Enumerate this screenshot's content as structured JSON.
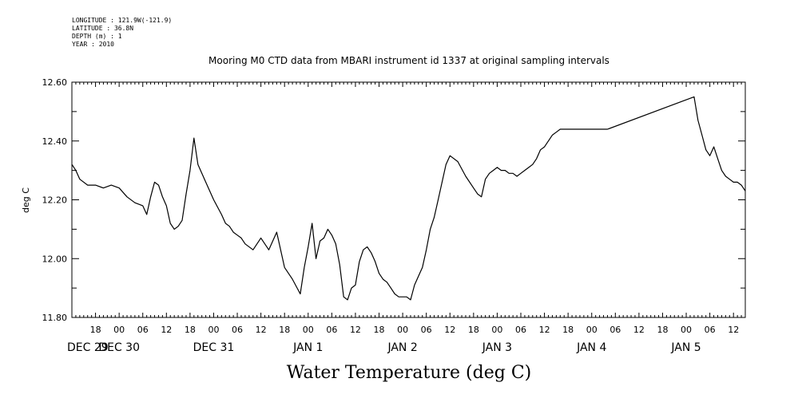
{
  "header": {
    "longitude": "LONGITUDE : 121.9W(-121.9)",
    "latitude": "LATITUDE : 36.8N",
    "depth": "DEPTH (m) : 1",
    "year": "YEAR : 2010"
  },
  "chart_data": {
    "type": "line",
    "title": "Mooring M0 CTD data from MBARI instrument id 1337 at original sampling intervals",
    "xlabel": "Water Temperature (deg C)",
    "ylabel": "deg C",
    "ylim": [
      11.8,
      12.6
    ],
    "yticks": [
      "12.60",
      "12.40",
      "12.20",
      "12.00",
      "11.80"
    ],
    "x_range_hours": [
      12,
      183
    ],
    "x_hour_ticks": [
      "18",
      "00",
      "06",
      "12",
      "18",
      "00",
      "06",
      "12",
      "18",
      "00",
      "06",
      "12",
      "18",
      "00",
      "06",
      "12",
      "18",
      "00",
      "06",
      "12",
      "18",
      "00",
      "06",
      "12",
      "18",
      "00",
      "06",
      "12"
    ],
    "date_labels": [
      "DEC 29",
      "DEC 30",
      "DEC 31",
      "JAN  1",
      "JAN  2",
      "JAN  3",
      "JAN  4",
      "JAN  5"
    ],
    "grid": false,
    "series": [
      {
        "x": [
          12,
          13,
          14,
          16,
          18,
          20,
          22,
          24,
          26,
          28,
          30,
          31,
          32,
          33,
          34,
          35,
          36,
          37,
          38,
          39,
          40,
          41,
          42,
          43,
          44,
          46,
          48,
          50,
          51,
          52,
          53,
          54,
          55,
          56,
          58,
          60,
          62,
          64,
          66,
          68,
          70,
          71,
          72,
          73,
          74,
          75,
          76,
          77,
          78,
          79,
          80,
          81,
          82,
          83,
          84,
          85,
          86,
          87,
          88,
          89,
          90,
          91,
          92,
          93,
          94,
          95,
          96,
          97,
          98,
          99,
          100,
          101,
          102,
          103,
          104,
          105,
          106,
          107,
          108,
          110,
          112,
          114,
          115,
          116,
          117,
          118,
          119,
          120,
          121,
          122,
          123,
          124,
          125,
          126,
          127,
          128,
          129,
          130,
          131,
          132,
          134,
          135,
          136,
          137,
          138,
          139,
          140,
          141,
          142,
          143,
          144,
          145,
          146,
          147,
          148,
          170,
          171,
          172,
          173,
          174,
          175,
          176,
          177,
          178,
          179,
          180,
          181,
          182,
          183
        ],
        "y": [
          12.32,
          12.3,
          12.27,
          12.25,
          12.25,
          12.24,
          12.25,
          12.24,
          12.21,
          12.19,
          12.18,
          12.15,
          12.21,
          12.26,
          12.25,
          12.21,
          12.18,
          12.12,
          12.1,
          12.11,
          12.13,
          12.22,
          12.3,
          12.41,
          12.32,
          12.26,
          12.2,
          12.15,
          12.12,
          12.11,
          12.09,
          12.08,
          12.07,
          12.05,
          12.03,
          12.07,
          12.03,
          12.09,
          11.97,
          11.93,
          11.88,
          11.97,
          12.04,
          12.12,
          12.0,
          12.06,
          12.07,
          12.1,
          12.08,
          12.05,
          11.98,
          11.87,
          11.86,
          11.9,
          11.91,
          11.99,
          12.03,
          12.04,
          12.02,
          11.99,
          11.95,
          11.93,
          11.92,
          11.9,
          11.88,
          11.87,
          11.87,
          11.87,
          11.86,
          11.91,
          11.94,
          11.97,
          12.03,
          12.1,
          12.14,
          12.2,
          12.26,
          12.32,
          12.35,
          12.33,
          12.28,
          12.24,
          12.22,
          12.21,
          12.27,
          12.29,
          12.3,
          12.31,
          12.3,
          12.3,
          12.29,
          12.29,
          12.28,
          12.29,
          12.3,
          12.31,
          12.32,
          12.34,
          12.37,
          12.38,
          12.42,
          12.43,
          12.44,
          12.44,
          12.44,
          12.44,
          12.44,
          12.44,
          12.44,
          12.44,
          12.44,
          12.44,
          12.44,
          12.44,
          12.44,
          12.55,
          12.47,
          12.42,
          12.37,
          12.35,
          12.38,
          12.34,
          12.3,
          12.28,
          12.27,
          12.26,
          12.26,
          12.25,
          12.23
        ]
      }
    ]
  }
}
